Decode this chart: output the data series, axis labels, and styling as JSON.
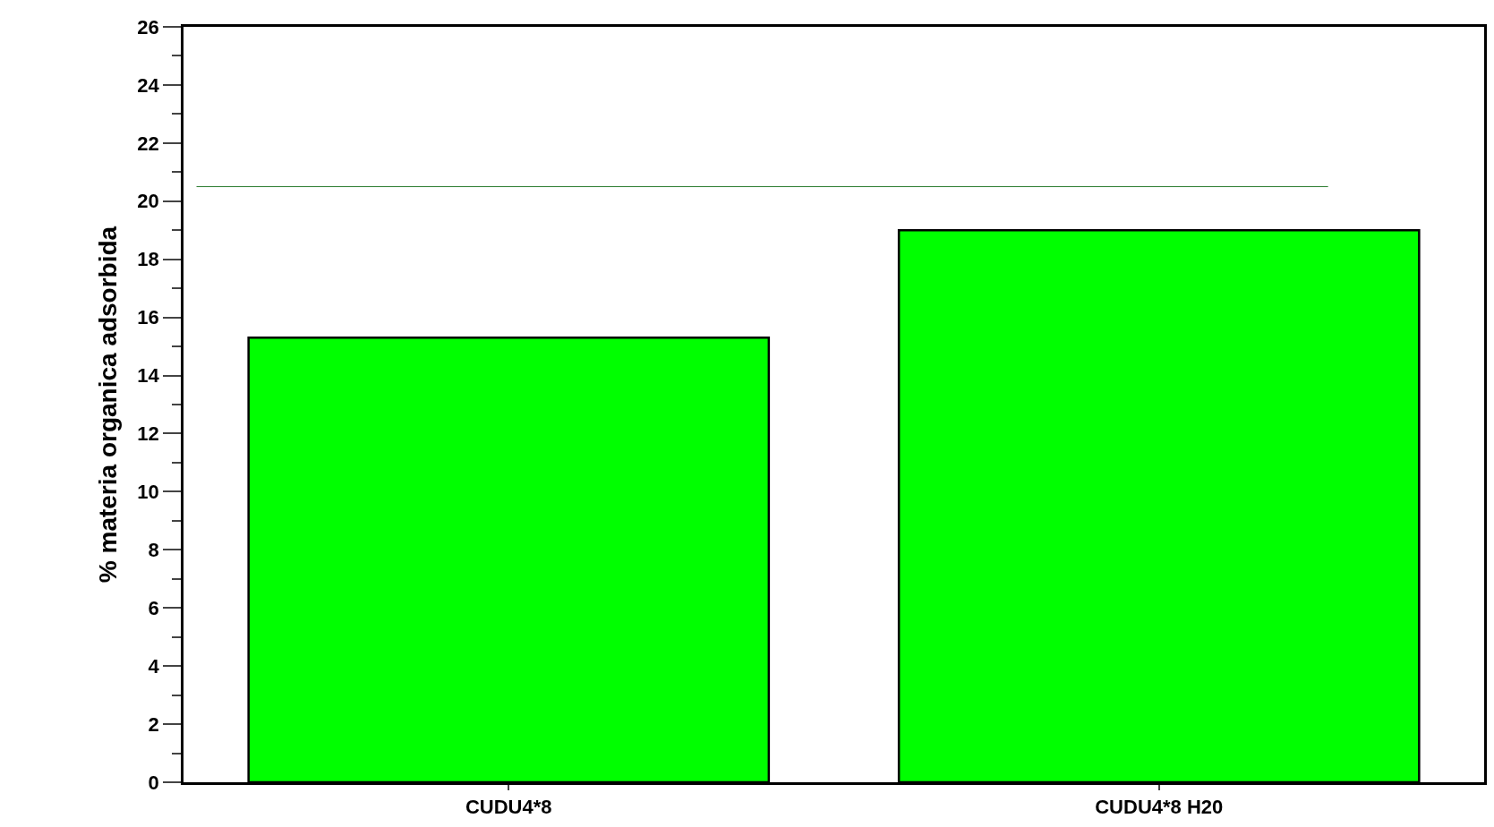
{
  "chart_data": {
    "type": "bar",
    "ylabel": "% materia organica adsorbida",
    "categories": [
      "CUDU4*8",
      "CUDU4*8 H20"
    ],
    "values": [
      15.3,
      19.0
    ],
    "color": "#00ff00",
    "ylim": [
      0,
      26
    ],
    "yticks": [
      0,
      2,
      4,
      6,
      8,
      10,
      12,
      14,
      16,
      18,
      20,
      22,
      24,
      26
    ],
    "ref_lines": [
      {
        "axis": "y",
        "value": 20.5,
        "color": "#2e7d32",
        "line_style": "solid"
      }
    ],
    "legend": false
  }
}
